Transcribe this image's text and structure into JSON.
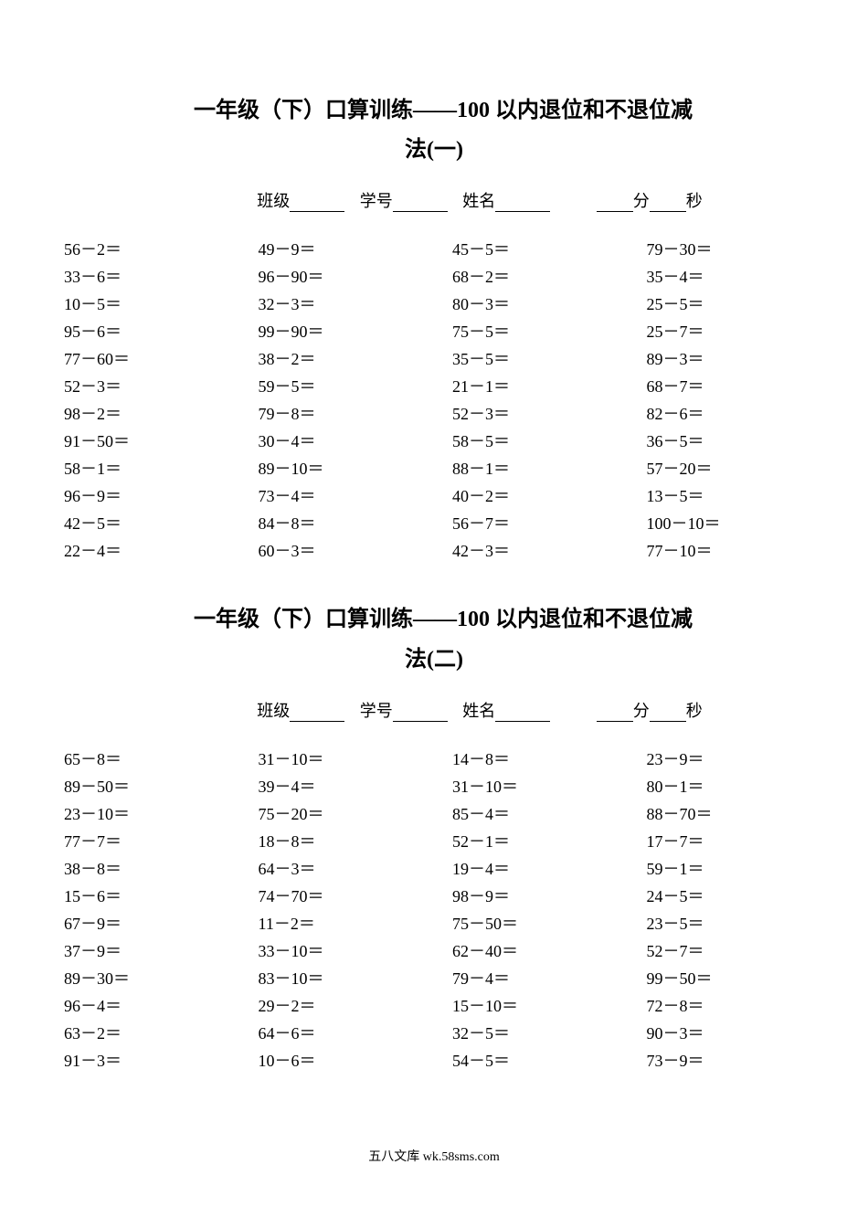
{
  "sections": [
    {
      "title_line1": "一年级（下）口算训练——100 以内退位和不退位减",
      "title_line2": "法(一)",
      "info": {
        "class_label": "班级",
        "id_label": "学号",
        "name_label": "姓名",
        "min_label": "分",
        "sec_label": "秒"
      },
      "columns": [
        [
          "56－2＝",
          "33－6＝",
          "10－5＝",
          "95－6＝",
          "77－60＝",
          "52－3＝",
          "98－2＝",
          "91－50＝",
          "58－1＝",
          "96－9＝",
          "42－5＝",
          "22－4＝"
        ],
        [
          "49－9＝",
          "96－90＝",
          "32－3＝",
          "99－90＝",
          "38－2＝",
          "59－5＝",
          "79－8＝",
          "30－4＝",
          "89－10＝",
          "73－4＝",
          "84－8＝",
          "60－3＝"
        ],
        [
          "45－5＝",
          "68－2＝",
          "80－3＝",
          "75－5＝",
          "35－5＝",
          "21－1＝",
          "52－3＝",
          "58－5＝",
          "88－1＝",
          "40－2＝",
          "56－7＝",
          "42－3＝"
        ],
        [
          "79－30＝",
          "35－4＝",
          "25－5＝",
          "25－7＝",
          "89－3＝",
          "68－7＝",
          "82－6＝",
          "36－5＝",
          "57－20＝",
          "13－5＝",
          "100－10＝",
          "77－10＝"
        ]
      ]
    },
    {
      "title_line1": "一年级（下）口算训练——100 以内退位和不退位减",
      "title_line2": "法(二)",
      "info": {
        "class_label": "班级",
        "id_label": "学号",
        "name_label": "姓名",
        "min_label": "分",
        "sec_label": "秒"
      },
      "columns": [
        [
          "65－8＝",
          "89－50＝",
          "23－10＝",
          "77－7＝",
          "38－8＝",
          "15－6＝",
          "67－9＝",
          "37－9＝",
          "89－30＝",
          "96－4＝",
          "63－2＝",
          "91－3＝"
        ],
        [
          "31－10＝",
          "39－4＝",
          "75－20＝",
          "18－8＝",
          "64－3＝",
          "74－70＝",
          "11－2＝",
          "33－10＝",
          "83－10＝",
          "29－2＝",
          "64－6＝",
          "10－6＝"
        ],
        [
          "14－8＝",
          "31－10＝",
          "85－4＝",
          "52－1＝",
          "19－4＝",
          "98－9＝",
          "75－50＝",
          "62－40＝",
          "79－4＝",
          "15－10＝",
          "32－5＝",
          "54－5＝"
        ],
        [
          "23－9＝",
          "80－1＝",
          "88－70＝",
          "17－7＝",
          "59－1＝",
          "24－5＝",
          "23－5＝",
          "52－7＝",
          "99－50＝",
          "72－8＝",
          "90－3＝",
          "73－9＝"
        ]
      ]
    }
  ],
  "footer_text": "五八文库 wk.58sms.com",
  "style": {
    "background_color": "#ffffff",
    "text_color": "#000000",
    "title_fontsize": 24,
    "body_fontsize": 18,
    "footer_fontsize": 14
  }
}
